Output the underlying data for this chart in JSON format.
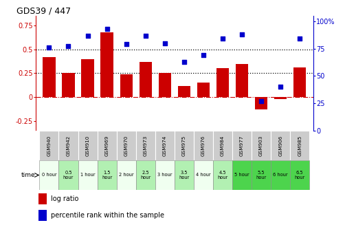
{
  "title": "GDS39 / 447",
  "categories": [
    "GSM940",
    "GSM942",
    "GSM910",
    "GSM969",
    "GSM970",
    "GSM973",
    "GSM974",
    "GSM975",
    "GSM976",
    "GSM984",
    "GSM977",
    "GSM903",
    "GSM906",
    "GSM985"
  ],
  "time_labels": [
    "0 hour",
    "0.5\nhour",
    "1 hour",
    "1.5\nhour",
    "2 hour",
    "2.5\nhour",
    "3 hour",
    "3.5\nhour",
    "4 hour",
    "4.5\nhour",
    "5 hour",
    "5.5\nhour",
    "6 hour",
    "6.5\nhour"
  ],
  "log_ratio": [
    0.42,
    0.25,
    0.4,
    0.68,
    0.24,
    0.37,
    0.25,
    0.12,
    0.15,
    0.3,
    0.35,
    -0.13,
    -0.02,
    0.31
  ],
  "percentile": [
    76,
    77,
    87,
    93,
    79,
    87,
    80,
    63,
    69,
    84,
    88,
    27,
    40,
    84
  ],
  "bar_color": "#cc0000",
  "dot_color": "#0000cc",
  "left_ylim": [
    -0.35,
    0.85
  ],
  "right_ylim": [
    0,
    105
  ],
  "left_yticks": [
    -0.25,
    0,
    0.25,
    0.5,
    0.75
  ],
  "right_yticks": [
    0,
    25,
    50,
    75,
    100
  ],
  "hline_values": [
    0.25,
    0.5
  ],
  "zero_line": 0,
  "bg_colors_time": [
    "#f0fff0",
    "#b2f0b2",
    "#f0fff0",
    "#b2f0b2",
    "#f0fff0",
    "#b2f0b2",
    "#f0fff0",
    "#b2f0b2",
    "#f0fff0",
    "#b2f0b2",
    "#4dd44d",
    "#4dd44d",
    "#4dd44d",
    "#4dd44d"
  ],
  "gsm_bg": "#cccccc",
  "legend_log_ratio": "log ratio",
  "legend_percentile": "percentile rank within the sample"
}
